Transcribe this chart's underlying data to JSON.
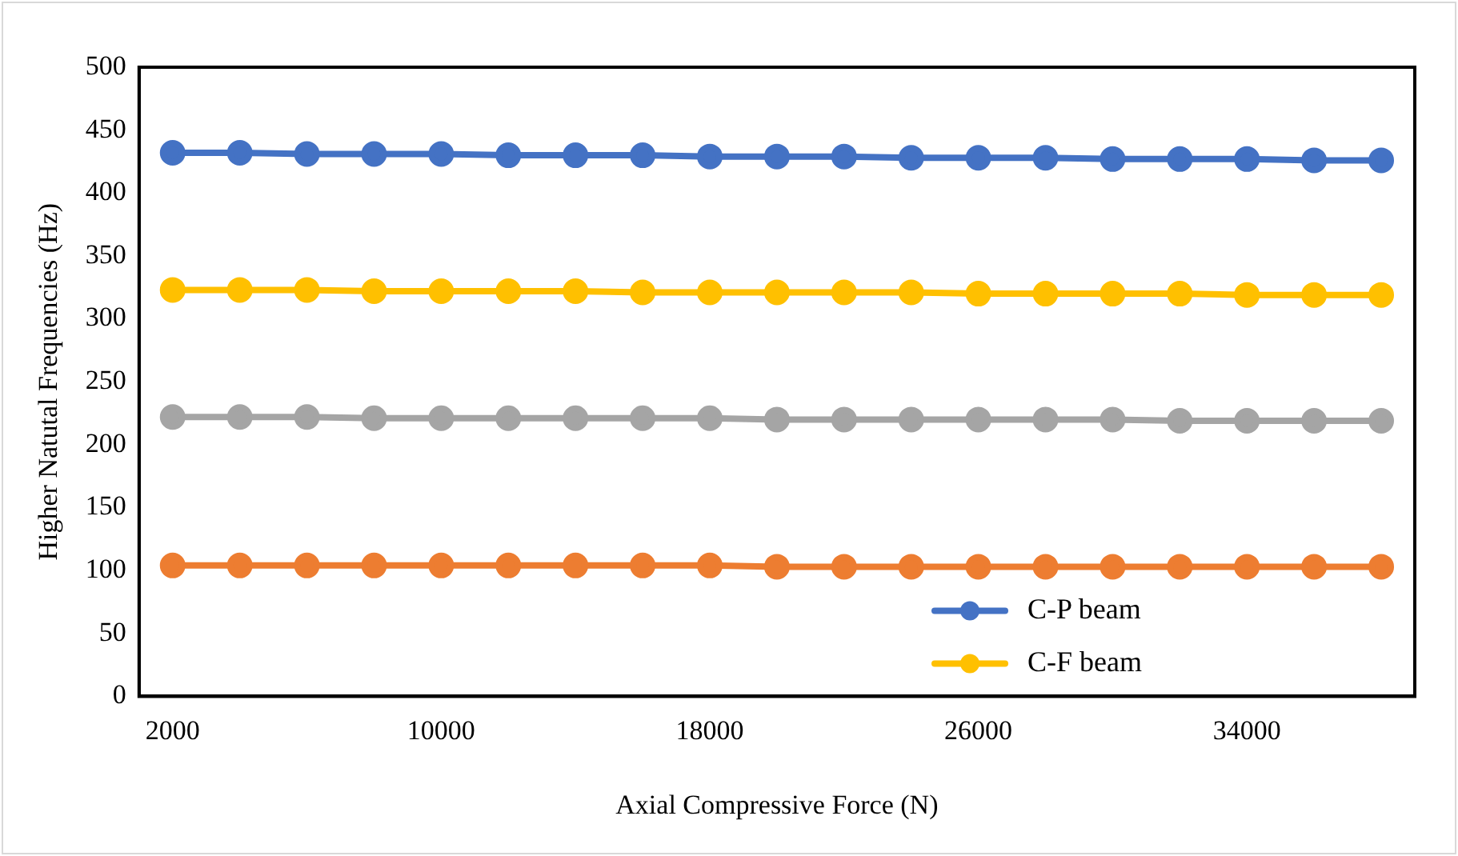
{
  "chart_data": {
    "type": "line",
    "xlabel": "Axial Compressive Force (N)",
    "ylabel": "Higher Natutal Frequencies (Hz)",
    "categories": [
      "2000",
      null,
      null,
      null,
      "10000",
      null,
      null,
      null,
      "18000",
      null,
      null,
      null,
      "26000",
      null,
      null,
      null,
      "34000",
      null,
      null
    ],
    "series": [
      {
        "name": "C-P beam",
        "color": "#4472c4",
        "values": [
          432,
          432,
          431,
          431,
          431,
          430,
          430,
          430,
          429,
          429,
          429,
          428,
          428,
          428,
          427,
          427,
          427,
          426,
          426
        ]
      },
      {
        "name": "C-F beam",
        "color": "#ffc000",
        "values": [
          323,
          323,
          323,
          322,
          322,
          322,
          322,
          321,
          321,
          321,
          321,
          321,
          320,
          320,
          320,
          320,
          319,
          319,
          319
        ]
      },
      {
        "color": "#a5a5a5",
        "values": [
          222,
          222,
          222,
          221,
          221,
          221,
          221,
          221,
          221,
          220,
          220,
          220,
          220,
          220,
          220,
          219,
          219,
          219,
          219
        ]
      },
      {
        "color": "#ed7d31",
        "values": [
          104,
          104,
          104,
          104,
          104,
          104,
          104,
          104,
          104,
          103,
          103,
          103,
          103,
          103,
          103,
          103,
          103,
          103,
          103
        ]
      }
    ],
    "ylim": [
      0,
      500
    ],
    "yticks": [
      0,
      50,
      100,
      150,
      200,
      250,
      300,
      350,
      400,
      450,
      500
    ],
    "grid": false,
    "legend": "bottom right",
    "marker": "circle",
    "line_style": "solid"
  }
}
